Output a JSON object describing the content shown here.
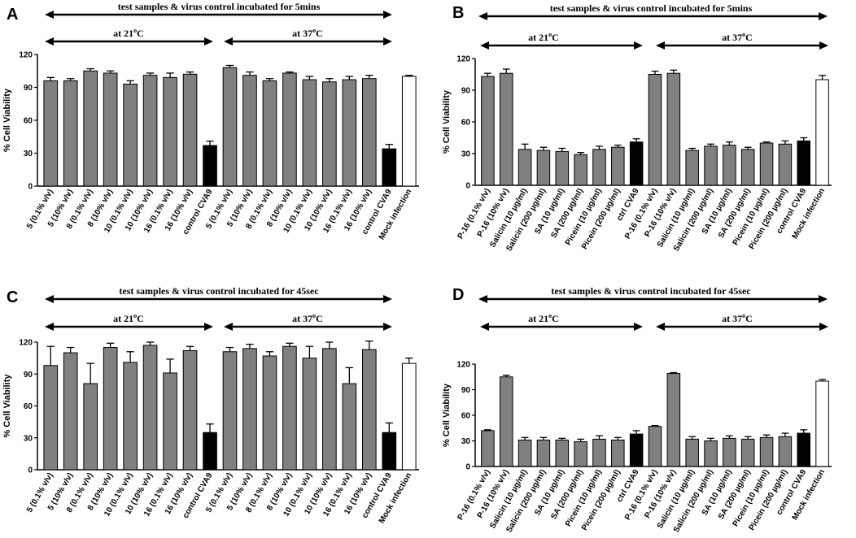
{
  "figure": {
    "superscript_o": "o",
    "c_unit": "C"
  },
  "chart_data": [
    {
      "panel": "A",
      "type": "bar",
      "banner": "test samples & virus control incubated for 5mins",
      "temp_left": "at 21",
      "temp_right": "at 37",
      "ylabel": "% Cell Viability",
      "ylim": [
        0,
        120
      ],
      "yticks": [
        0,
        30,
        60,
        90,
        120
      ],
      "categories": [
        "5 (0.1% v/v)",
        "5 (10% v/v)",
        "8 (0.1% v/v)",
        "8 (10% v/v)",
        "10 (0.1% v/v)",
        "10 (10% v/v)",
        "16 (0.1% v/v)",
        "16 (10% v/v)",
        "control CVA9",
        "5 (0.1% v/v)",
        "5 (10% v/v)",
        "8 (0.1% v/v)",
        "8 (10% v/v)",
        "10 (0.1% v/v)",
        "10 (10% v/v)",
        "16 (0.1% v/v)",
        "16 (10% v/v)",
        "control CVA9",
        "Mock infection"
      ],
      "values": [
        96,
        96,
        105,
        103,
        93,
        101,
        99,
        102,
        37,
        108,
        101,
        96,
        103,
        97,
        95,
        97,
        98,
        34,
        100
      ],
      "errors": [
        3,
        2,
        2,
        2,
        3,
        2,
        4,
        2,
        4,
        2,
        3,
        2,
        1,
        3,
        3,
        3,
        3,
        4,
        1
      ],
      "fills": [
        "gray",
        "gray",
        "gray",
        "gray",
        "gray",
        "gray",
        "gray",
        "gray",
        "black",
        "gray",
        "gray",
        "gray",
        "gray",
        "gray",
        "gray",
        "gray",
        "gray",
        "black",
        "white"
      ]
    },
    {
      "panel": "B",
      "type": "bar",
      "banner": "test samples & virus control incubated for 5mins",
      "temp_left": "at 21",
      "temp_right": "at 37",
      "ylabel": "% Cell Viability",
      "ylim": [
        0,
        120
      ],
      "yticks": [
        0,
        30,
        60,
        90,
        120
      ],
      "categories": [
        "P-16 (0.1% v/v)",
        "P-16 (10% v/v)",
        "Salicin (10 µg/ml)",
        "Salicin (200 µg/ml)",
        "SA (10 µg/ml)",
        "SA (200 µg/ml)",
        "Picein (10 µg/ml)",
        "Picein (200 µg/ml)",
        "ctrl CVA9",
        "P-16 (0.1% v/v)",
        "P-16 (10% v/v)",
        "Salicin (10 µg/ml)",
        "Salicin (200 µg/ml)",
        "SA (10 µg/ml)",
        "SA (200 µg/ml)",
        "Picein (10 µg/ml)",
        "Picein (200 µg/ml)",
        "control CVA9",
        "Mock infection"
      ],
      "values": [
        103,
        106,
        34,
        33,
        32,
        29,
        34,
        36,
        41,
        105,
        106,
        33,
        37,
        38,
        34,
        40,
        39,
        42,
        100
      ],
      "errors": [
        3,
        4,
        5,
        3,
        3,
        2,
        3,
        2,
        3,
        3,
        3,
        2,
        2,
        3,
        2,
        1,
        3,
        3,
        4
      ],
      "fills": [
        "gray",
        "gray",
        "gray",
        "gray",
        "gray",
        "gray",
        "gray",
        "gray",
        "black",
        "gray",
        "gray",
        "gray",
        "gray",
        "gray",
        "gray",
        "gray",
        "gray",
        "black",
        "white"
      ]
    },
    {
      "panel": "C",
      "type": "bar",
      "banner": "test samples & virus control incubated for 45sec",
      "temp_left": "at 21",
      "temp_right": "at 37",
      "ylabel": "% Cell Viability",
      "ylim": [
        0,
        120
      ],
      "yticks": [
        0,
        30,
        60,
        90,
        120
      ],
      "categories": [
        "5 (0.1% v/v)",
        "5 (10% v/v)",
        "8 (0.1% v/v)",
        "8 (10% v/v)",
        "10 (0.1% v/v)",
        "10 (10% v/v)",
        "16 (0.1% v/v)",
        "16 (10% v/v)",
        "control CVA9",
        "5 (0.1% v/v)",
        "5 (10% v/v)",
        "8 (0.1% v/v)",
        "8 (10% v/v)",
        "10 (0.1% v/v)",
        "10 (10% v/v)",
        "16 (0.1% v/v)",
        "16 (10% v/v)",
        "control CVA9",
        "Mock infection"
      ],
      "values": [
        98,
        110,
        81,
        115,
        101,
        117,
        91,
        112,
        35,
        111,
        114,
        107,
        116,
        105,
        114,
        81,
        113,
        35,
        100
      ],
      "errors": [
        18,
        5,
        19,
        4,
        10,
        3,
        13,
        4,
        8,
        4,
        4,
        4,
        3,
        11,
        6,
        15,
        8,
        9,
        5
      ],
      "fills": [
        "gray",
        "gray",
        "gray",
        "gray",
        "gray",
        "gray",
        "gray",
        "gray",
        "black",
        "gray",
        "gray",
        "gray",
        "gray",
        "gray",
        "gray",
        "gray",
        "gray",
        "black",
        "white"
      ]
    },
    {
      "panel": "D",
      "type": "bar",
      "banner": "test samples & virus control incubated for 45sec",
      "temp_left": "at 21",
      "temp_right": "at 37",
      "ylabel": "% Cell Viability",
      "ylim": [
        0,
        120
      ],
      "yticks": [
        0,
        30,
        60,
        90,
        120
      ],
      "categories": [
        "P-16 (0.1% v/v)",
        "P-16 (10% v/v)",
        "Salicin (10 µg/ml)",
        "Salicin (200 µg/ml)",
        "SA (10 µg/ml)",
        "SA (200 µg/ml)",
        "Picein (10 µg/ml)",
        "Picein (200 µg/ml)",
        "ctrl CVA9",
        "P-16 (0.1% v/v)",
        "P-16 (10% v/v)",
        "Salicin (10 µg/ml)",
        "Salicin (200 µg/ml)",
        "SA (10 µg/ml)",
        "SA (200 µg/ml)",
        "Picein (10 µg/ml)",
        "Picein (200 µg/ml)",
        "control CVA9",
        "Mock infection"
      ],
      "values": [
        42,
        105,
        31,
        31,
        31,
        29,
        32,
        31,
        38,
        47,
        109,
        32,
        30,
        33,
        32,
        34,
        35,
        39,
        100
      ],
      "errors": [
        1,
        2,
        3,
        3,
        2,
        3,
        4,
        3,
        4,
        1,
        1,
        3,
        3,
        3,
        3,
        3,
        4,
        4,
        2
      ],
      "fills": [
        "gray",
        "gray",
        "gray",
        "gray",
        "gray",
        "gray",
        "gray",
        "gray",
        "black",
        "gray",
        "gray",
        "gray",
        "gray",
        "gray",
        "gray",
        "gray",
        "gray",
        "black",
        "white"
      ]
    }
  ]
}
